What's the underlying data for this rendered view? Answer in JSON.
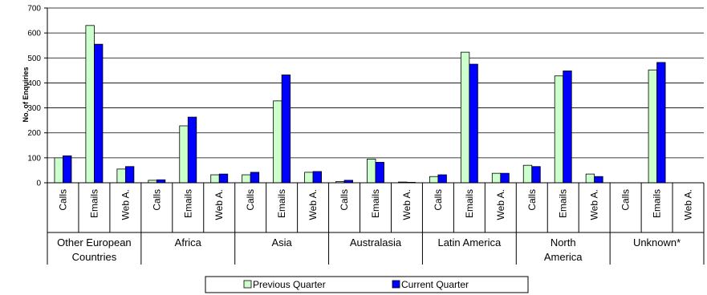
{
  "chart_data": {
    "type": "bar",
    "ylabel": "No. of Enquiries",
    "ylim": [
      0,
      700
    ],
    "yticks": [
      "0",
      "100",
      "200",
      "300",
      "400",
      "500",
      "600",
      "700"
    ],
    "grid": true,
    "legend_position": "bottom",
    "regions": [
      {
        "label": [
          "Other European",
          "Countries"
        ],
        "categories": [
          "Calls",
          "Emails",
          "Web A."
        ]
      },
      {
        "label": [
          "Africa"
        ],
        "categories": [
          "Calls",
          "Emails",
          "Web A."
        ]
      },
      {
        "label": [
          "Asia"
        ],
        "categories": [
          "Calls",
          "Emails",
          "Web A."
        ]
      },
      {
        "label": [
          "Australasia"
        ],
        "categories": [
          "Calls",
          "Emails",
          "Web A."
        ]
      },
      {
        "label": [
          "Latin America"
        ],
        "categories": [
          "Calls",
          "Emails",
          "Web A."
        ]
      },
      {
        "label": [
          "North",
          "America"
        ],
        "categories": [
          "Calls",
          "Emails",
          "Web A."
        ]
      },
      {
        "label": [
          "Unknown*"
        ],
        "categories": [
          "Calls",
          "Emails",
          "Web A."
        ]
      }
    ],
    "series": [
      {
        "name": "Previous Quarter",
        "color": "#ccffcc",
        "values": [
          100,
          630,
          55,
          10,
          228,
          32,
          32,
          328,
          42,
          5,
          95,
          3,
          25,
          523,
          38,
          70,
          428,
          35,
          0,
          452,
          0
        ]
      },
      {
        "name": "Current Quarter",
        "color": "#0000ff",
        "values": [
          108,
          555,
          65,
          12,
          263,
          35,
          42,
          432,
          45,
          10,
          82,
          2,
          32,
          475,
          38,
          65,
          448,
          25,
          0,
          482,
          0
        ]
      }
    ]
  }
}
